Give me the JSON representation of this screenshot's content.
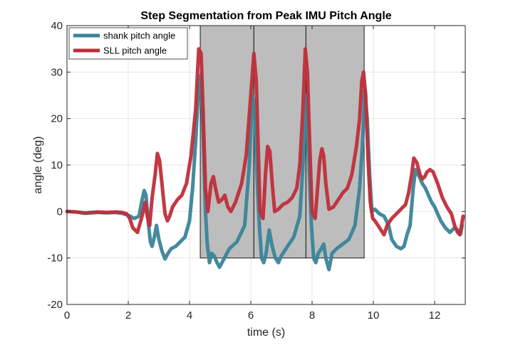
{
  "chart_data": {
    "type": "line",
    "title": "Step Segmentation from Peak IMU Pitch Angle",
    "xlabel": "time (s)",
    "ylabel": "angle (deg)",
    "xlim": [
      0,
      13
    ],
    "ylim": [
      -20,
      40
    ],
    "xticks": [
      0,
      2,
      4,
      6,
      8,
      10,
      12
    ],
    "yticks": [
      -20,
      -10,
      0,
      10,
      20,
      30,
      40
    ],
    "grid": true,
    "legend_position": "top-left",
    "step_regions": {
      "boundaries": [
        4.35,
        6.1,
        7.8,
        9.7
      ],
      "y_bottom": -10,
      "y_top": 40,
      "fill_color": "#bdbdbd"
    },
    "series": [
      {
        "name": "shank pitch angle",
        "color": "#3a8499",
        "points": [
          [
            0,
            0
          ],
          [
            0.3,
            -0.1
          ],
          [
            0.6,
            -0.4
          ],
          [
            1.0,
            -0.2
          ],
          [
            1.3,
            -0.3
          ],
          [
            1.6,
            -0.2
          ],
          [
            1.8,
            -0.4
          ],
          [
            2.0,
            -0.8
          ],
          [
            2.2,
            -1.5
          ],
          [
            2.35,
            -1.0
          ],
          [
            2.45,
            2.5
          ],
          [
            2.52,
            4.5
          ],
          [
            2.58,
            3.5
          ],
          [
            2.65,
            -2.0
          ],
          [
            2.72,
            -6.5
          ],
          [
            2.78,
            -7.5
          ],
          [
            2.85,
            -5.5
          ],
          [
            2.92,
            -3.0
          ],
          [
            3.0,
            -6.0
          ],
          [
            3.1,
            -8.5
          ],
          [
            3.2,
            -10.2
          ],
          [
            3.3,
            -9.0
          ],
          [
            3.4,
            -8.0
          ],
          [
            3.55,
            -7.5
          ],
          [
            3.7,
            -6.5
          ],
          [
            3.85,
            -5.5
          ],
          [
            4.0,
            -2.0
          ],
          [
            4.1,
            5.0
          ],
          [
            4.2,
            15.0
          ],
          [
            4.3,
            27.0
          ],
          [
            4.38,
            29.5
          ],
          [
            4.45,
            15.0
          ],
          [
            4.52,
            0.0
          ],
          [
            4.58,
            -7.0
          ],
          [
            4.65,
            -11.0
          ],
          [
            4.72,
            -9.0
          ],
          [
            4.8,
            -9.5
          ],
          [
            4.9,
            -11.0
          ],
          [
            4.98,
            -12.0
          ],
          [
            5.1,
            -10.5
          ],
          [
            5.3,
            -8.0
          ],
          [
            5.55,
            -6.5
          ],
          [
            5.8,
            -3.0
          ],
          [
            5.95,
            10.0
          ],
          [
            6.05,
            25.0
          ],
          [
            6.12,
            23.0
          ],
          [
            6.2,
            8.0
          ],
          [
            6.28,
            -3.0
          ],
          [
            6.35,
            -10.0
          ],
          [
            6.42,
            -11.0
          ],
          [
            6.5,
            -9.0
          ],
          [
            6.6,
            -4.0
          ],
          [
            6.7,
            -7.5
          ],
          [
            6.8,
            -10.0
          ],
          [
            6.9,
            -11.0
          ],
          [
            7.0,
            -9.5
          ],
          [
            7.2,
            -7.5
          ],
          [
            7.4,
            -5.5
          ],
          [
            7.6,
            -1.0
          ],
          [
            7.72,
            12.0
          ],
          [
            7.82,
            25.0
          ],
          [
            7.9,
            10.0
          ],
          [
            7.98,
            -3.0
          ],
          [
            8.05,
            -10.0
          ],
          [
            8.12,
            -11.0
          ],
          [
            8.2,
            -9.0
          ],
          [
            8.3,
            -8.0
          ],
          [
            8.38,
            -7.0
          ],
          [
            8.45,
            -10.0
          ],
          [
            8.55,
            -12.5
          ],
          [
            8.65,
            -9.0
          ],
          [
            8.8,
            -8.0
          ],
          [
            9.0,
            -7.0
          ],
          [
            9.2,
            -6.0
          ],
          [
            9.4,
            -3.0
          ],
          [
            9.55,
            5.0
          ],
          [
            9.65,
            15.0
          ],
          [
            9.72,
            26.0
          ],
          [
            9.8,
            20.0
          ],
          [
            9.88,
            8.0
          ],
          [
            9.95,
            0.0
          ],
          [
            10.05,
            0.5
          ],
          [
            10.2,
            -0.5
          ],
          [
            10.35,
            -1.0
          ],
          [
            10.5,
            -3.0
          ],
          [
            10.6,
            -6.0
          ],
          [
            10.75,
            -7.5
          ],
          [
            10.9,
            -8.0
          ],
          [
            11.0,
            -7.5
          ],
          [
            11.1,
            -5.0
          ],
          [
            11.2,
            -3.0
          ],
          [
            11.3,
            5.0
          ],
          [
            11.38,
            9.0
          ],
          [
            11.5,
            7.5
          ],
          [
            11.6,
            6.0
          ],
          [
            11.7,
            5.0
          ],
          [
            11.8,
            3.5
          ],
          [
            11.9,
            2.0
          ],
          [
            12.0,
            1.0
          ],
          [
            12.1,
            -0.5
          ],
          [
            12.2,
            -2.0
          ],
          [
            12.35,
            -3.5
          ],
          [
            12.5,
            -4.5
          ],
          [
            12.65,
            -3.5
          ],
          [
            12.75,
            -4.0
          ],
          [
            12.85,
            -4.8
          ],
          [
            12.9,
            -3.0
          ]
        ]
      },
      {
        "name": "SLL pitch angle",
        "color": "#bf2e3a",
        "points": [
          [
            0,
            0
          ],
          [
            0.3,
            -0.1
          ],
          [
            0.6,
            -0.3
          ],
          [
            1.0,
            -0.1
          ],
          [
            1.3,
            -0.2
          ],
          [
            1.6,
            -0.1
          ],
          [
            1.8,
            -0.2
          ],
          [
            1.95,
            -0.5
          ],
          [
            2.05,
            -1.5
          ],
          [
            2.15,
            -3.5
          ],
          [
            2.3,
            -4.5
          ],
          [
            2.45,
            -1.0
          ],
          [
            2.55,
            2.0
          ],
          [
            2.62,
            -1.0
          ],
          [
            2.7,
            -3.0
          ],
          [
            2.78,
            3.0
          ],
          [
            2.88,
            8.0
          ],
          [
            2.95,
            12.5
          ],
          [
            3.02,
            11.0
          ],
          [
            3.1,
            6.0
          ],
          [
            3.2,
            -0.5
          ],
          [
            3.28,
            -2.0
          ],
          [
            3.35,
            -1.0
          ],
          [
            3.45,
            1.0
          ],
          [
            3.6,
            2.5
          ],
          [
            3.75,
            3.5
          ],
          [
            3.9,
            6.0
          ],
          [
            4.05,
            12.0
          ],
          [
            4.2,
            22.0
          ],
          [
            4.3,
            35.0
          ],
          [
            4.38,
            34.0
          ],
          [
            4.45,
            20.0
          ],
          [
            4.52,
            5.0
          ],
          [
            4.6,
            0.0
          ],
          [
            4.7,
            6.0
          ],
          [
            4.78,
            7.5
          ],
          [
            4.85,
            5.0
          ],
          [
            4.95,
            2.0
          ],
          [
            5.05,
            2.5
          ],
          [
            5.15,
            3.5
          ],
          [
            5.25,
            1.0
          ],
          [
            5.35,
            0.0
          ],
          [
            5.5,
            2.0
          ],
          [
            5.7,
            6.0
          ],
          [
            5.85,
            12.0
          ],
          [
            6.0,
            25.0
          ],
          [
            6.1,
            34.0
          ],
          [
            6.18,
            28.0
          ],
          [
            6.25,
            12.0
          ],
          [
            6.3,
            0.0
          ],
          [
            6.4,
            -1.5
          ],
          [
            6.48,
            8.0
          ],
          [
            6.55,
            14.0
          ],
          [
            6.62,
            13.0
          ],
          [
            6.7,
            6.0
          ],
          [
            6.78,
            0.0
          ],
          [
            6.9,
            0.5
          ],
          [
            7.05,
            1.5
          ],
          [
            7.2,
            2.0
          ],
          [
            7.35,
            3.0
          ],
          [
            7.5,
            5.0
          ],
          [
            7.6,
            10.0
          ],
          [
            7.7,
            22.0
          ],
          [
            7.78,
            35.0
          ],
          [
            7.85,
            30.0
          ],
          [
            7.92,
            15.0
          ],
          [
            8.0,
            0.0
          ],
          [
            8.1,
            -1.5
          ],
          [
            8.18,
            5.0
          ],
          [
            8.25,
            11.0
          ],
          [
            8.32,
            13.5
          ],
          [
            8.38,
            12.0
          ],
          [
            8.45,
            6.0
          ],
          [
            8.55,
            0.5
          ],
          [
            8.7,
            1.0
          ],
          [
            8.85,
            2.5
          ],
          [
            9.0,
            4.0
          ],
          [
            9.15,
            5.0
          ],
          [
            9.3,
            8.0
          ],
          [
            9.45,
            14.0
          ],
          [
            9.55,
            20.0
          ],
          [
            9.62,
            28.0
          ],
          [
            9.68,
            30.0
          ],
          [
            9.75,
            25.0
          ],
          [
            9.82,
            12.0
          ],
          [
            9.9,
            2.0
          ],
          [
            9.98,
            -1.5
          ],
          [
            10.05,
            -2.0
          ],
          [
            10.15,
            -3.0
          ],
          [
            10.25,
            -4.0
          ],
          [
            10.35,
            -5.0
          ],
          [
            10.45,
            -3.0
          ],
          [
            10.6,
            -1.5
          ],
          [
            10.75,
            -0.5
          ],
          [
            10.9,
            0.5
          ],
          [
            11.05,
            1.5
          ],
          [
            11.15,
            4.0
          ],
          [
            11.25,
            8.0
          ],
          [
            11.32,
            11.5
          ],
          [
            11.42,
            10.5
          ],
          [
            11.52,
            8.0
          ],
          [
            11.6,
            7.0
          ],
          [
            11.68,
            7.5
          ],
          [
            11.75,
            8.5
          ],
          [
            11.85,
            9.0
          ],
          [
            11.95,
            8.5
          ],
          [
            12.1,
            6.0
          ],
          [
            12.25,
            3.0
          ],
          [
            12.4,
            1.0
          ],
          [
            12.55,
            -0.5
          ],
          [
            12.65,
            -3.0
          ],
          [
            12.75,
            -4.5
          ],
          [
            12.82,
            -5.0
          ],
          [
            12.88,
            -3.0
          ],
          [
            12.93,
            -1.0
          ]
        ]
      }
    ]
  }
}
